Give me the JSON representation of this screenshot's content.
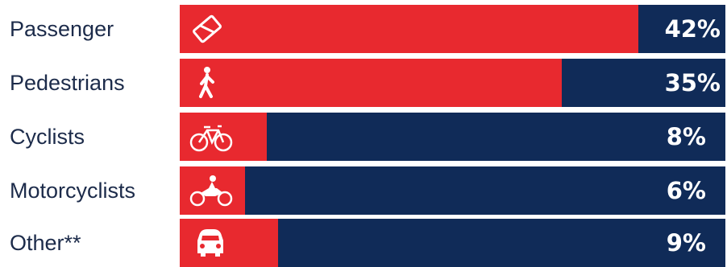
{
  "colors": {
    "fill": "#e8292f",
    "background": "#102b58",
    "label": "#1c2b4a"
  },
  "chart_data": {
    "type": "bar",
    "orientation": "horizontal",
    "categories": [
      "Passenger",
      "Pedestrians",
      "Cyclists",
      "Motorcyclists",
      "Other**"
    ],
    "values": [
      42,
      35,
      8,
      6,
      9
    ],
    "value_labels": [
      "42%",
      "35%",
      "8%",
      "6%",
      "9%"
    ],
    "icons": [
      "passenger-ticket-icon",
      "pedestrian-icon",
      "bicycle-icon",
      "motorcycle-icon",
      "car-icon"
    ],
    "xlim": [
      0,
      50
    ],
    "grid": false,
    "legend": "none"
  }
}
